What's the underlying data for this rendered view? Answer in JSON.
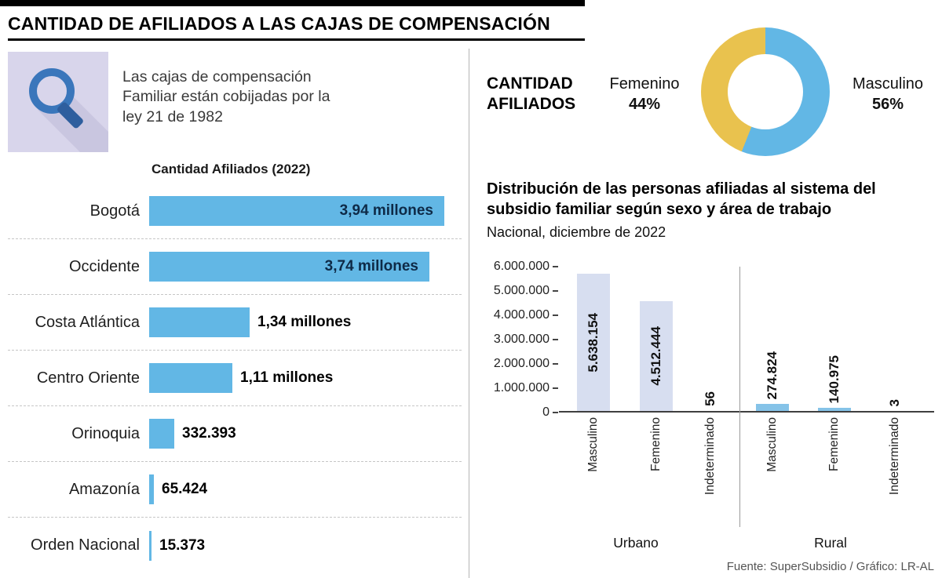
{
  "colors": {
    "blue": "#62B7E5",
    "yellow": "#E9C24E",
    "urban_bar": "#D7DEF0",
    "rural_bar": "#85C3E8",
    "icon_bg": "#D8D5EB",
    "icon_shadow": "#C9C6E0",
    "icon_glass": "#3A76BB",
    "icon_handle": "#2E5E9E"
  },
  "header": {
    "title": "CANTIDAD DE AFILIADOS A LAS CAJAS DE COMPENSACIÓN"
  },
  "left_panel": {
    "note": "Las cajas de compensación Familiar están cobijadas por la ley 21 de 1982",
    "chart_title": "Cantidad Afiliados (2022)"
  },
  "donut_panel": {
    "title": "CANTIDAD AFILIADOS",
    "left_label": "Femenino",
    "left_pct": "44%",
    "right_label": "Masculino",
    "right_pct": "56%"
  },
  "dist_panel": {
    "title": "Distribución de las personas afiliadas al sistema del subsidio familiar según sexo y área de trabajo",
    "subtitle": "Nacional, diciembre de 2022"
  },
  "footer": {
    "source": "Fuente: SuperSubsidio / Gráfico: LR-AL"
  },
  "chart_data": [
    {
      "type": "bar",
      "orientation": "horizontal",
      "title": "Cantidad Afiliados (2022)",
      "categories": [
        "Bogotá",
        "Occidente",
        "Costa Atlántica",
        "Centro Oriente",
        "Orinoquia",
        "Amazonía",
        "Orden Nacional"
      ],
      "values": [
        3940000,
        3740000,
        1340000,
        1110000,
        332393,
        65424,
        15373
      ],
      "value_labels": [
        "3,94 millones",
        "3,74 millones",
        "1,34 millones",
        "1,11 millones",
        "332.393",
        "65.424",
        "15.373"
      ],
      "xlim": [
        0,
        3940000
      ],
      "bar_color": "#62B7E5"
    },
    {
      "type": "pie",
      "donut": true,
      "title": "CANTIDAD AFILIADOS",
      "labels": [
        "Masculino",
        "Femenino"
      ],
      "values": [
        56,
        44
      ],
      "colors": [
        "#62B7E5",
        "#E9C24E"
      ]
    },
    {
      "type": "bar",
      "orientation": "vertical",
      "title": "Distribución de las personas afiliadas al sistema del subsidio familiar según sexo y área de trabajo",
      "subtitle": "Nacional, diciembre de 2022",
      "groups": [
        "Urbano",
        "Rural"
      ],
      "categories": [
        "Masculino",
        "Femenino",
        "Indeterminado"
      ],
      "series": [
        {
          "name": "Urbano",
          "values": [
            5638154,
            4512444,
            56
          ]
        },
        {
          "name": "Rural",
          "values": [
            274824,
            140975,
            3
          ]
        }
      ],
      "value_labels": [
        [
          "5.638.154",
          "4.512.444",
          "56"
        ],
        [
          "274.824",
          "140.975",
          "3"
        ]
      ],
      "ylim": [
        0,
        6000000
      ],
      "ytick_labels": [
        "6.000.000",
        "5.000.000",
        "4.000.000",
        "3.000.000",
        "2.000.000",
        "1.000.000",
        "0"
      ]
    }
  ]
}
